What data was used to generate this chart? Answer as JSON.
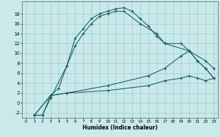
{
  "xlabel": "Humidex (Indice chaleur)",
  "bg_color": "#c8eaea",
  "grid_color": "#a8cccc",
  "line_color": "#1a6060",
  "xlim": [
    -0.5,
    23.5
  ],
  "ylim": [
    -3.0,
    20.5
  ],
  "xticks": [
    0,
    1,
    2,
    3,
    4,
    5,
    6,
    7,
    8,
    9,
    10,
    11,
    12,
    13,
    14,
    15,
    16,
    17,
    18,
    19,
    20,
    21,
    22,
    23
  ],
  "yticks": [
    -2,
    0,
    2,
    4,
    6,
    8,
    10,
    12,
    14,
    16,
    18
  ],
  "line1_x": [
    1,
    2,
    3,
    5,
    6,
    7,
    8,
    9,
    10,
    11,
    12,
    13,
    14,
    15,
    16,
    17,
    20,
    22,
    23
  ],
  "line1_y": [
    -2.5,
    -2.5,
    1.0,
    7.5,
    13.0,
    15.0,
    17.0,
    18.0,
    18.5,
    19.0,
    19.2,
    18.5,
    17.0,
    15.5,
    13.5,
    12.0,
    10.5,
    8.5,
    7.0
  ],
  "line2_x": [
    1,
    2,
    3,
    4,
    5,
    6,
    7,
    8,
    9,
    10,
    11,
    12,
    14,
    16,
    17,
    19,
    20,
    21,
    22,
    23
  ],
  "line2_y": [
    -2.5,
    -2.5,
    1.5,
    3.0,
    7.5,
    11.5,
    14.0,
    16.0,
    17.5,
    18.0,
    18.5,
    18.5,
    16.0,
    14.0,
    12.0,
    12.0,
    10.5,
    8.5,
    7.0,
    5.0
  ],
  "line3_x": [
    1,
    3,
    5,
    10,
    15,
    17,
    19,
    20,
    21,
    22,
    23
  ],
  "line3_y": [
    -2.5,
    1.5,
    2.0,
    3.5,
    5.5,
    7.0,
    9.5,
    10.5,
    8.5,
    7.0,
    5.0
  ],
  "line4_x": [
    1,
    3,
    5,
    10,
    15,
    17,
    19,
    20,
    21,
    22,
    23
  ],
  "line4_y": [
    -2.5,
    1.5,
    2.0,
    2.5,
    3.5,
    4.5,
    5.0,
    5.5,
    5.0,
    4.5,
    5.0
  ]
}
